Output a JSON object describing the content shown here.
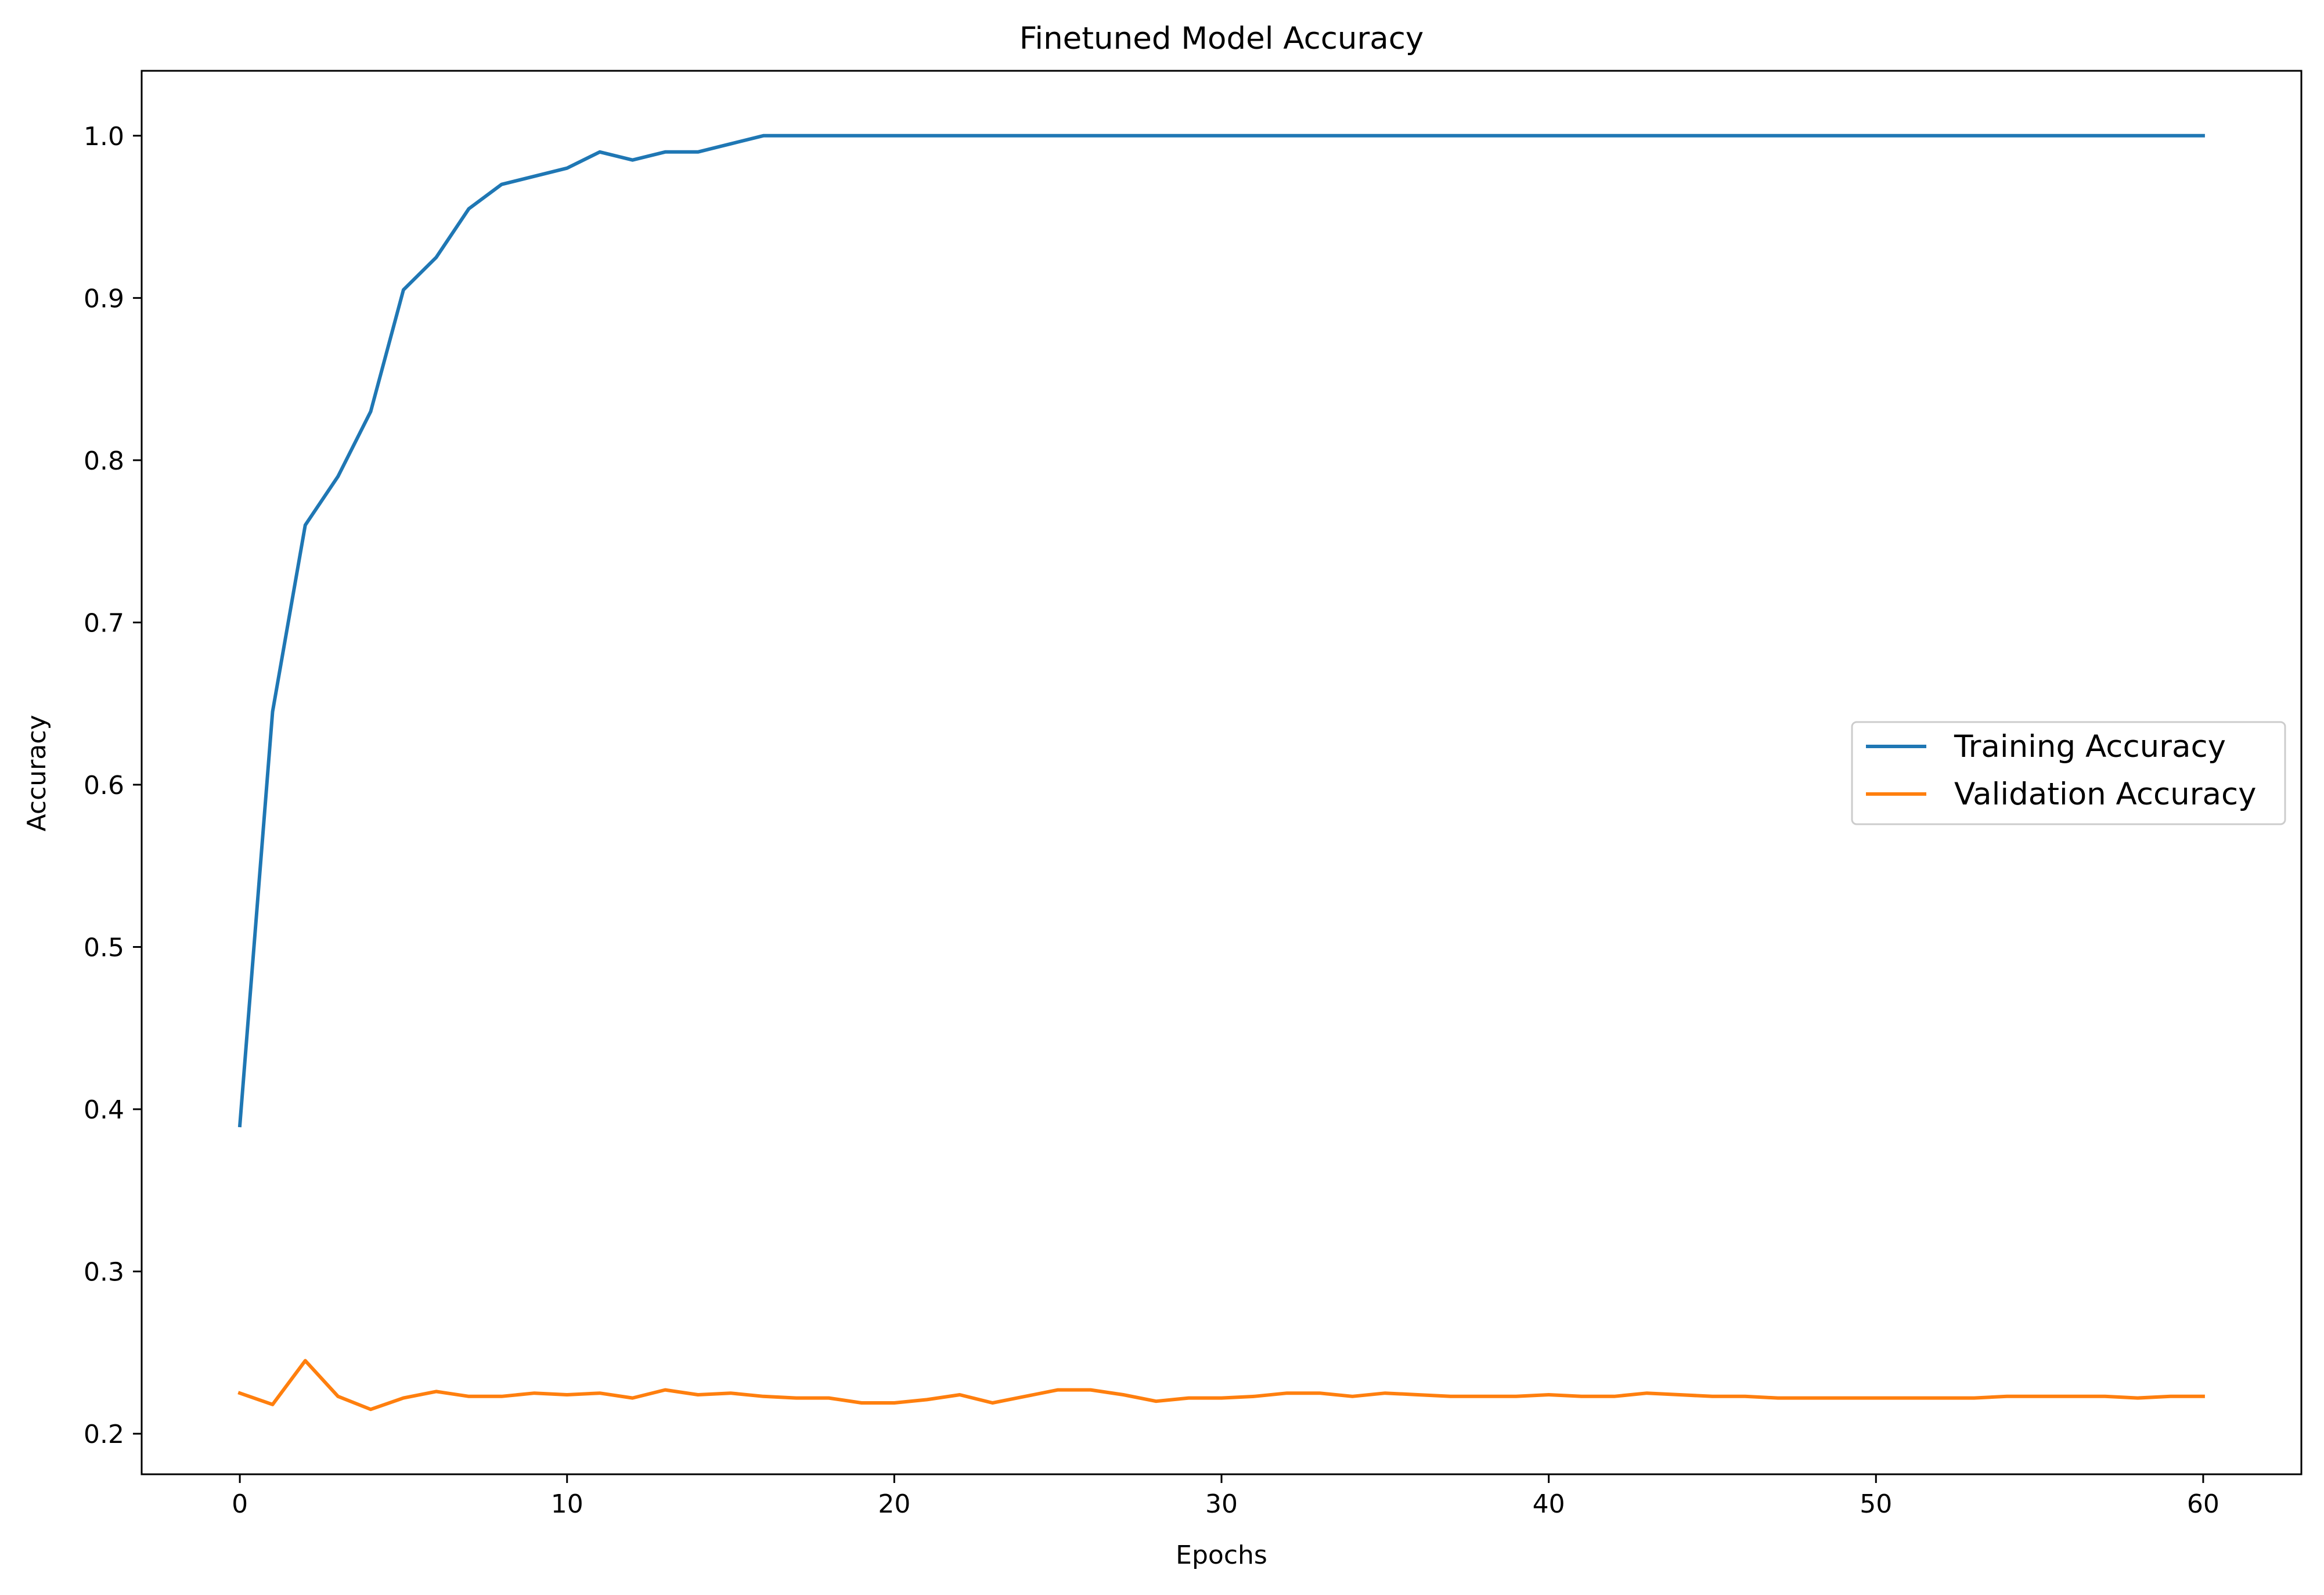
{
  "chart_data": {
    "type": "line",
    "title": "Finetuned Model Accuracy",
    "xlabel": "Epochs",
    "ylabel": "Accuracy",
    "xlim": [
      -3,
      63
    ],
    "ylim": [
      0.175,
      1.04
    ],
    "xticks": [
      0,
      10,
      20,
      30,
      40,
      50,
      60
    ],
    "yticks": [
      0.2,
      0.3,
      0.4,
      0.5,
      0.6,
      0.7,
      0.8,
      0.9,
      1.0
    ],
    "xtick_labels": [
      "0",
      "10",
      "20",
      "30",
      "40",
      "50",
      "60"
    ],
    "ytick_labels": [
      "0.2",
      "0.3",
      "0.4",
      "0.5",
      "0.6",
      "0.7",
      "0.8",
      "0.9",
      "1.0"
    ],
    "grid": false,
    "legend_position": "center-right",
    "x": [
      0,
      1,
      2,
      3,
      4,
      5,
      6,
      7,
      8,
      9,
      10,
      11,
      12,
      13,
      14,
      15,
      16,
      17,
      18,
      19,
      20,
      21,
      22,
      23,
      24,
      25,
      26,
      27,
      28,
      29,
      30,
      31,
      32,
      33,
      34,
      35,
      36,
      37,
      38,
      39,
      40,
      41,
      42,
      43,
      44,
      45,
      46,
      47,
      48,
      49,
      50,
      51,
      52,
      53,
      54,
      55,
      56,
      57,
      58,
      59,
      60
    ],
    "series": [
      {
        "name": "Training Accuracy",
        "color": "#1f77b4",
        "values": [
          0.39,
          0.645,
          0.76,
          0.79,
          0.83,
          0.905,
          0.925,
          0.955,
          0.97,
          0.975,
          0.98,
          0.99,
          0.985,
          0.99,
          0.99,
          0.995,
          1.0,
          1.0,
          1.0,
          1.0,
          1.0,
          1.0,
          1.0,
          1.0,
          1.0,
          1.0,
          1.0,
          1.0,
          1.0,
          1.0,
          1.0,
          1.0,
          1.0,
          1.0,
          1.0,
          1.0,
          1.0,
          1.0,
          1.0,
          1.0,
          1.0,
          1.0,
          1.0,
          1.0,
          1.0,
          1.0,
          1.0,
          1.0,
          1.0,
          1.0,
          1.0,
          1.0,
          1.0,
          1.0,
          1.0,
          1.0,
          1.0,
          1.0,
          1.0,
          1.0,
          1.0
        ]
      },
      {
        "name": "Validation Accuracy",
        "color": "#ff7f0e",
        "values": [
          0.225,
          0.218,
          0.245,
          0.223,
          0.215,
          0.222,
          0.226,
          0.223,
          0.223,
          0.225,
          0.224,
          0.225,
          0.222,
          0.227,
          0.224,
          0.225,
          0.223,
          0.222,
          0.222,
          0.219,
          0.219,
          0.221,
          0.224,
          0.219,
          0.223,
          0.227,
          0.227,
          0.224,
          0.22,
          0.222,
          0.222,
          0.223,
          0.225,
          0.225,
          0.223,
          0.225,
          0.224,
          0.223,
          0.223,
          0.223,
          0.224,
          0.223,
          0.223,
          0.225,
          0.224,
          0.223,
          0.223,
          0.222,
          0.222,
          0.222,
          0.222,
          0.222,
          0.222,
          0.222,
          0.223,
          0.223,
          0.223,
          0.223,
          0.222,
          0.223,
          0.223
        ]
      }
    ]
  }
}
